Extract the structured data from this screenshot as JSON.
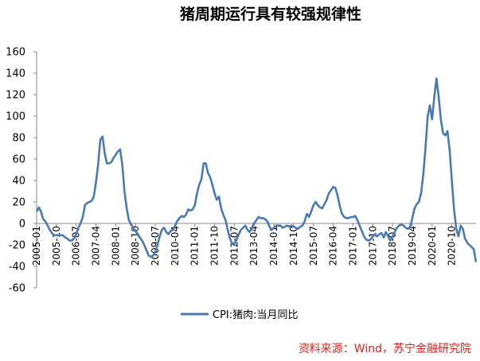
{
  "chart_data": {
    "type": "line",
    "title": "猪周期运行具有较强规律性",
    "source": "资料来源：Wind，苏宁金融研究院",
    "xlabel": "",
    "ylabel": "",
    "ylim": [
      -60,
      160
    ],
    "yticks": [
      -60,
      -40,
      -20,
      0,
      20,
      40,
      60,
      80,
      100,
      120,
      140,
      160
    ],
    "grid": false,
    "legend": "bottom-center",
    "color": "#4a7ab4",
    "xtick_labels": [
      "2005-01",
      "2005-10",
      "2006-07",
      "2007-04",
      "2008-01",
      "2008-10",
      "2009-07",
      "2010-04",
      "2011-01",
      "2011-10",
      "2012-07",
      "2013-04",
      "2014-01",
      "2014-10",
      "2015-07",
      "2016-04",
      "2017-01",
      "2017-10",
      "2018-07",
      "2019-04",
      "2020-01",
      "2020-10"
    ],
    "x_start": "2005-01",
    "series": [
      {
        "name": "CPI:猪肉:当月同比",
        "values": [
          11,
          15,
          11,
          4,
          2,
          -2,
          -6,
          -9,
          -11,
          -11,
          -11,
          -11,
          -11,
          -13,
          -14,
          -16,
          -16,
          -14,
          -10,
          -4,
          0,
          6,
          17,
          19,
          20,
          21,
          25,
          38,
          55,
          78,
          81,
          65,
          56,
          56,
          57,
          61,
          64,
          67,
          69,
          55,
          30,
          14,
          3,
          -1,
          -4,
          -7,
          -10,
          -13,
          -16,
          -20,
          -25,
          -30,
          -31,
          -30,
          -27,
          -20,
          -12,
          -6,
          -4,
          -8,
          -10,
          -7,
          -6,
          -2,
          2,
          5,
          7,
          6,
          8,
          13,
          12,
          13,
          17,
          28,
          36,
          41,
          56,
          56,
          47,
          43,
          36,
          28,
          22,
          25,
          14,
          8,
          3,
          -6,
          -14,
          -19,
          -20,
          -15,
          -10,
          -6,
          -4,
          -2,
          -6,
          -8,
          -4,
          0,
          3,
          6,
          5,
          5,
          4,
          2,
          -3,
          -6,
          -4,
          -2,
          -2,
          -2,
          -4,
          -3,
          -2,
          -3,
          -2,
          -3,
          -4,
          -5,
          -3,
          -2,
          2,
          9,
          6,
          11,
          17,
          20,
          17,
          15,
          14,
          18,
          22,
          28,
          31,
          34,
          33,
          26,
          16,
          9,
          6,
          5,
          5,
          6,
          6,
          7,
          3,
          -2,
          -7,
          -12,
          -15,
          -16,
          -15,
          -12,
          -10,
          -12,
          -10,
          -9,
          -13,
          -8,
          -12,
          -16,
          -12,
          -8,
          -4,
          -2,
          -1,
          -2,
          -4,
          -5,
          -3,
          5,
          14,
          18,
          20,
          28,
          46,
          70,
          100,
          110,
          97,
          118,
          135,
          118,
          97,
          84,
          82,
          86,
          68,
          40,
          13,
          -5,
          -12,
          -2,
          -5,
          -14,
          -18,
          -20,
          -22,
          -24,
          -36
        ]
      }
    ]
  }
}
